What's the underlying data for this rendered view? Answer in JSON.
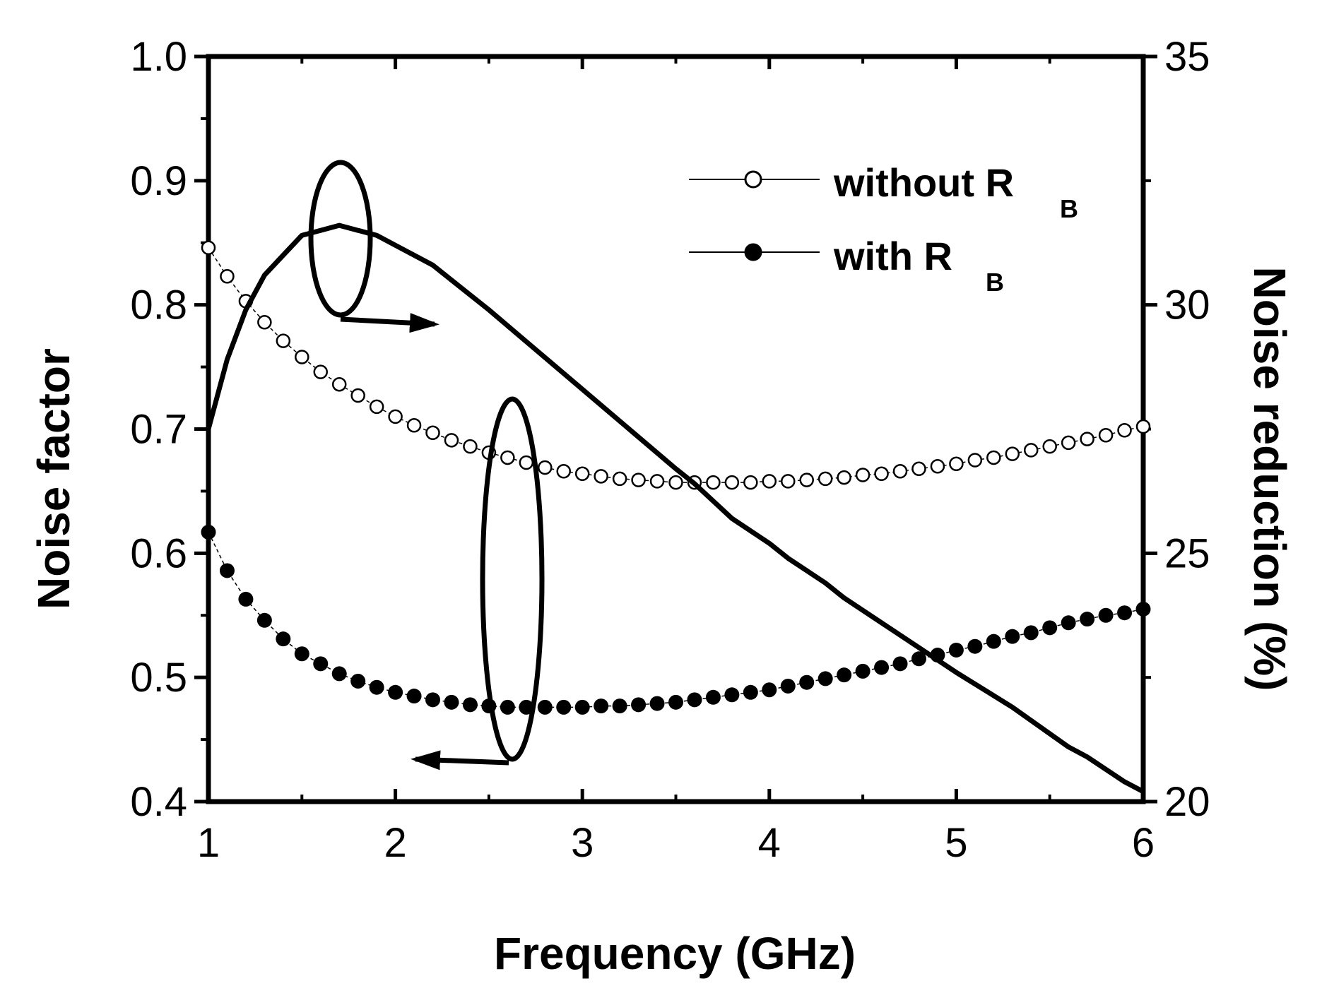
{
  "chart_data": {
    "type": "line",
    "title": "",
    "xlabel": "Frequency (GHz)",
    "ylabel_left": "Noise factor",
    "ylabel_right": "Noise reduction (%)",
    "xlim": [
      1,
      6
    ],
    "ylim_left": [
      0.4,
      1.0
    ],
    "ylim_right": [
      20,
      35
    ],
    "x_ticks": [
      "1",
      "2",
      "3",
      "4",
      "5",
      "6"
    ],
    "y_left_ticks": [
      "0.4",
      "0.5",
      "0.6",
      "0.7",
      "0.8",
      "0.9",
      "1.0"
    ],
    "y_right_ticks": [
      "20",
      "25",
      "30",
      "35"
    ],
    "grid": false,
    "legend_position": "top-right",
    "legend": [
      {
        "label": "without R",
        "subscript": "B",
        "marker": "open-circle"
      },
      {
        "label": "with R",
        "subscript": "B",
        "marker": "filled-circle"
      }
    ],
    "series": [
      {
        "name": "without RB",
        "axis": "left",
        "marker": "open-circle",
        "x": [
          1.0,
          1.1,
          1.2,
          1.3,
          1.4,
          1.5,
          1.6,
          1.7,
          1.8,
          1.9,
          2.0,
          2.1,
          2.2,
          2.3,
          2.4,
          2.5,
          2.6,
          2.7,
          2.8,
          2.9,
          3.0,
          3.1,
          3.2,
          3.3,
          3.4,
          3.5,
          3.6,
          3.7,
          3.8,
          3.9,
          4.0,
          4.1,
          4.2,
          4.3,
          4.4,
          4.5,
          4.6,
          4.7,
          4.8,
          4.9,
          5.0,
          5.1,
          5.2,
          5.3,
          5.4,
          5.5,
          5.6,
          5.7,
          5.8,
          5.9,
          6.0
        ],
        "y": [
          0.846,
          0.823,
          0.803,
          0.786,
          0.771,
          0.758,
          0.746,
          0.736,
          0.727,
          0.718,
          0.71,
          0.703,
          0.697,
          0.691,
          0.686,
          0.681,
          0.677,
          0.673,
          0.669,
          0.666,
          0.664,
          0.662,
          0.66,
          0.659,
          0.658,
          0.657,
          0.657,
          0.657,
          0.657,
          0.657,
          0.658,
          0.658,
          0.659,
          0.66,
          0.661,
          0.663,
          0.664,
          0.666,
          0.668,
          0.67,
          0.672,
          0.675,
          0.677,
          0.68,
          0.683,
          0.686,
          0.689,
          0.692,
          0.695,
          0.699,
          0.702
        ]
      },
      {
        "name": "with RB",
        "axis": "left",
        "marker": "filled-circle",
        "x": [
          1.0,
          1.1,
          1.2,
          1.3,
          1.4,
          1.5,
          1.6,
          1.7,
          1.8,
          1.9,
          2.0,
          2.1,
          2.2,
          2.3,
          2.4,
          2.5,
          2.6,
          2.7,
          2.8,
          2.9,
          3.0,
          3.1,
          3.2,
          3.3,
          3.4,
          3.5,
          3.6,
          3.7,
          3.8,
          3.9,
          4.0,
          4.1,
          4.2,
          4.3,
          4.4,
          4.5,
          4.6,
          4.7,
          4.8,
          4.9,
          5.0,
          5.1,
          5.2,
          5.3,
          5.4,
          5.5,
          5.6,
          5.7,
          5.8,
          5.9,
          6.0
        ],
        "y": [
          0.617,
          0.586,
          0.563,
          0.546,
          0.531,
          0.519,
          0.511,
          0.503,
          0.497,
          0.492,
          0.488,
          0.485,
          0.482,
          0.48,
          0.478,
          0.477,
          0.476,
          0.476,
          0.476,
          0.476,
          0.476,
          0.477,
          0.477,
          0.478,
          0.479,
          0.48,
          0.482,
          0.484,
          0.486,
          0.488,
          0.49,
          0.493,
          0.496,
          0.499,
          0.502,
          0.505,
          0.508,
          0.511,
          0.515,
          0.518,
          0.522,
          0.525,
          0.529,
          0.533,
          0.536,
          0.54,
          0.544,
          0.547,
          0.55,
          0.552,
          0.555
        ]
      },
      {
        "name": "Noise reduction",
        "axis": "right",
        "marker": "none",
        "x": [
          1.0,
          1.1,
          1.2,
          1.3,
          1.4,
          1.5,
          1.6,
          1.7,
          1.8,
          1.9,
          2.0,
          2.2,
          2.5,
          3.0,
          3.5,
          3.6,
          3.8,
          4.0,
          4.1,
          4.3,
          4.4,
          4.6,
          5.0,
          5.3,
          5.6,
          5.7,
          5.9,
          6.0
        ],
        "y": [
          27.5,
          28.9,
          29.9,
          30.6,
          31.0,
          31.4,
          31.5,
          31.6,
          31.5,
          31.4,
          31.2,
          30.8,
          29.9,
          28.3,
          26.7,
          26.4,
          25.7,
          25.2,
          24.9,
          24.4,
          24.1,
          23.6,
          22.6,
          21.9,
          21.1,
          20.9,
          20.4,
          20.2
        ]
      }
    ],
    "annotations": [
      {
        "type": "ellipse-arrow",
        "encircles": "Noise reduction",
        "points_to": "right axis"
      },
      {
        "type": "ellipse-arrow",
        "encircles": "Noise factor series",
        "points_to": "left axis"
      }
    ]
  }
}
